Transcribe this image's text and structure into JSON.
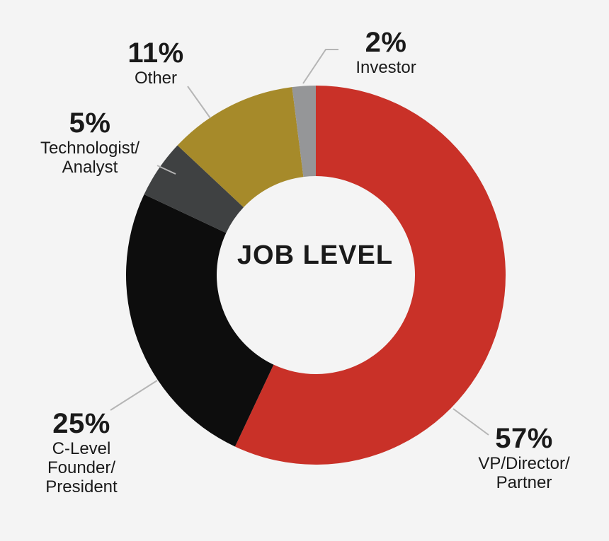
{
  "chart_data": {
    "type": "pie",
    "variant": "donut",
    "title": "JOB LEVEL",
    "slices": [
      {
        "pct_label": "57%",
        "value": 57,
        "category_lines": [
          "VP/Director/",
          "Partner"
        ],
        "color": "#c93128"
      },
      {
        "pct_label": "25%",
        "value": 25,
        "category_lines": [
          "C-Level",
          "Founder/",
          "President"
        ],
        "color": "#0d0d0d"
      },
      {
        "pct_label": "5%",
        "value": 5,
        "category_lines": [
          "Technologist/",
          "Analyst"
        ],
        "color": "#3f4142"
      },
      {
        "pct_label": "11%",
        "value": 11,
        "category_lines": [
          "Other"
        ],
        "color": "#a68a2a"
      },
      {
        "pct_label": "2%",
        "value": 2,
        "category_lines": [
          "Investor"
        ],
        "color": "#959698"
      }
    ]
  },
  "colors": {
    "background": "#f4f4f4",
    "leader_line": "#b5b5b5",
    "text": "#1a1a1a"
  }
}
